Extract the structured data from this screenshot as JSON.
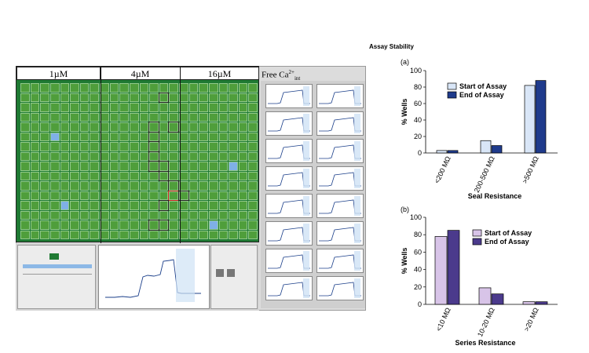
{
  "screen": {
    "groups": [
      "1µM",
      "4µM",
      "16µM"
    ],
    "free_ca_label": "Free Ca",
    "free_ca_super": "2+",
    "free_ca_sub": "int",
    "colors": {
      "plate": "#1f7a33",
      "well": "#4f9e3b",
      "selected_well": "#7fb0e6"
    }
  },
  "figure_title": "Assay Stability",
  "chart_data": [
    {
      "panel": "(a)",
      "type": "bar",
      "categories": [
        "<200 MΩ",
        "200-500 MΩ",
        ">500 MΩ"
      ],
      "series": [
        {
          "name": "Start of Assay",
          "values": [
            3,
            15,
            82
          ],
          "color": "#d9e6f7"
        },
        {
          "name": "End of Assay",
          "values": [
            3,
            9,
            88
          ],
          "color": "#1f3b8c"
        }
      ],
      "xlabel": "Seal Resistance",
      "ylabel": "% Wells",
      "ylim": [
        0,
        100
      ],
      "yticks": [
        0,
        20,
        40,
        60,
        80,
        100
      ],
      "legend": "top-left"
    },
    {
      "panel": "(b)",
      "type": "bar",
      "categories": [
        "<10 MΩ",
        "10-20 MΩ",
        ">20 MΩ"
      ],
      "series": [
        {
          "name": "Start of Assay",
          "values": [
            78,
            19,
            3
          ],
          "color": "#d8c4e8"
        },
        {
          "name": "End of Assay",
          "values": [
            85,
            12,
            3
          ],
          "color": "#4b3a8c"
        }
      ],
      "xlabel": "Series Resistance",
      "ylabel": "% Wells",
      "ylim": [
        0,
        100
      ],
      "yticks": [
        0,
        20,
        40,
        60,
        80,
        100
      ],
      "legend": "top-right"
    }
  ]
}
